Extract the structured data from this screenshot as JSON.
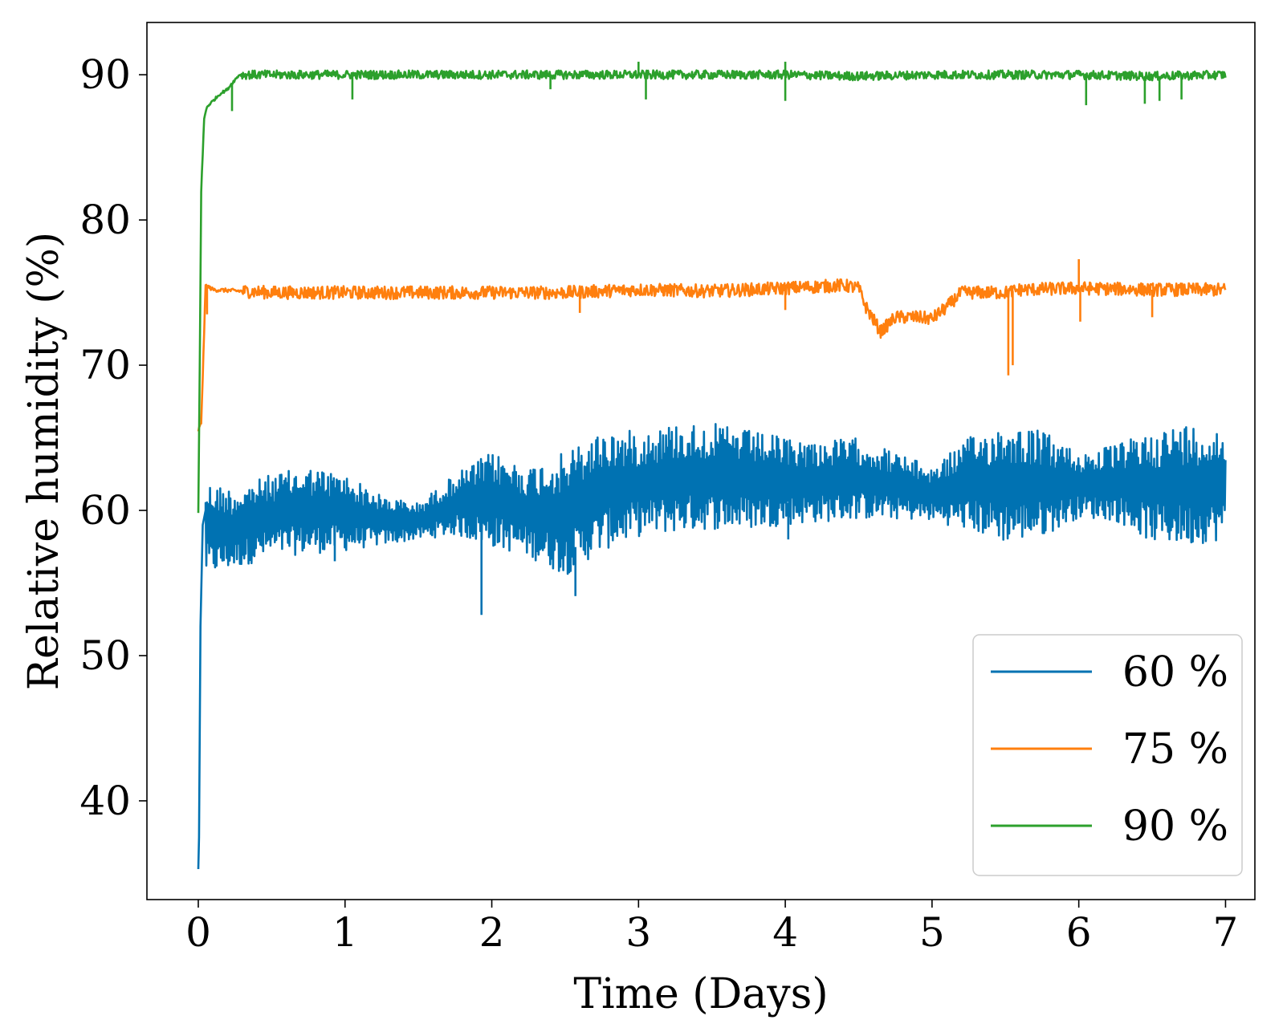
{
  "chart_data": {
    "type": "line",
    "title": "",
    "xlabel": "Time (Days)",
    "ylabel": "Relative humidity (%)",
    "xlim": [
      -0.35,
      7.2
    ],
    "ylim": [
      33.2,
      93.6
    ],
    "xticks": [
      0,
      1,
      2,
      3,
      4,
      5,
      6,
      7
    ],
    "yticks": [
      40,
      50,
      60,
      70,
      80,
      90
    ],
    "xtick_labels": [
      "0",
      "1",
      "2",
      "3",
      "4",
      "5",
      "6",
      "7"
    ],
    "ytick_labels": [
      "40",
      "50",
      "60",
      "70",
      "80",
      "90"
    ],
    "grid": false,
    "legend_position": "lower-right",
    "series": [
      {
        "name": "60 %",
        "color": "#0072b2",
        "start": [
          [
            0.0,
            35.3
          ],
          [
            0.005,
            37.5
          ],
          [
            0.015,
            52.0
          ],
          [
            0.03,
            59.0
          ],
          [
            0.05,
            60.0
          ]
        ],
        "envelope_x": [
          0.05,
          0.25,
          0.5,
          0.75,
          1.0,
          1.25,
          1.5,
          1.75,
          2.0,
          2.25,
          2.5,
          2.75,
          3.0,
          3.25,
          3.5,
          3.75,
          4.0,
          4.25,
          4.5,
          4.75,
          5.0,
          5.25,
          5.5,
          5.75,
          6.0,
          6.25,
          6.5,
          6.75,
          7.0
        ],
        "envelope_low": [
          55.5,
          56.0,
          56.8,
          57.0,
          57.2,
          57.6,
          58.0,
          58.3,
          57.5,
          56.8,
          55.5,
          57.2,
          58.2,
          58.5,
          58.7,
          58.7,
          59.0,
          59.2,
          59.4,
          59.4,
          59.3,
          58.6,
          57.8,
          58.2,
          59.5,
          59.3,
          57.8,
          57.6,
          58.0
        ],
        "envelope_high": [
          62.0,
          61.5,
          62.5,
          63.0,
          62.5,
          61.0,
          60.5,
          62.5,
          64.0,
          63.0,
          64.0,
          65.5,
          65.5,
          66.0,
          66.0,
          65.5,
          65.0,
          64.8,
          65.0,
          64.0,
          63.0,
          65.0,
          66.0,
          65.5,
          64.0,
          64.5,
          65.5,
          66.0,
          65.5
        ],
        "spikes": [
          [
            1.93,
            52.8
          ],
          [
            2.57,
            54.1
          ],
          [
            0.93,
            56.5
          ],
          [
            4.02,
            58.0
          ]
        ]
      },
      {
        "name": "75 %",
        "color": "#ff7f0e",
        "x": [
          0.0,
          0.02,
          0.05,
          0.1,
          0.5,
          1.0,
          1.5,
          2.0,
          2.5,
          3.0,
          3.5,
          4.0,
          4.4,
          4.5,
          4.55,
          4.65,
          4.75,
          4.9,
          5.0,
          5.1,
          5.2,
          5.4,
          5.5,
          5.6,
          6.0,
          6.5,
          7.0
        ],
        "y": [
          65.5,
          66.0,
          75.5,
          75.2,
          75.0,
          75.0,
          75.0,
          75.0,
          75.0,
          75.2,
          75.1,
          75.3,
          75.5,
          75.3,
          74.0,
          72.3,
          73.3,
          73.3,
          73.2,
          74.0,
          75.0,
          75.0,
          75.0,
          75.2,
          75.3,
          75.2,
          75.2
        ],
        "noise": 0.45,
        "spikes": [
          [
            0.06,
            73.5
          ],
          [
            5.52,
            69.3
          ],
          [
            5.55,
            70.0
          ],
          [
            6.0,
            77.3
          ],
          [
            6.01,
            73.0
          ],
          [
            2.6,
            73.6
          ],
          [
            4.0,
            73.8
          ],
          [
            6.5,
            73.3
          ]
        ]
      },
      {
        "name": "90 %",
        "color": "#2ca02c",
        "x": [
          0.0,
          0.01,
          0.02,
          0.04,
          0.06,
          0.1,
          0.15,
          0.2,
          0.22,
          0.28,
          0.5,
          1.0,
          2.0,
          3.0,
          4.0,
          4.5,
          5.0,
          6.0,
          6.5,
          7.0
        ],
        "y": [
          59.8,
          70.0,
          82.0,
          87.0,
          87.8,
          88.2,
          88.7,
          89.0,
          89.3,
          90.0,
          90.0,
          90.0,
          90.0,
          90.0,
          90.0,
          89.9,
          90.0,
          90.0,
          89.9,
          90.0
        ],
        "noise": 0.3,
        "spikes": [
          [
            0.23,
            87.5
          ],
          [
            1.05,
            88.3
          ],
          [
            2.4,
            89.0
          ],
          [
            3.05,
            88.3
          ],
          [
            3.0,
            90.9
          ],
          [
            4.0,
            88.2
          ],
          [
            4.0,
            90.9
          ],
          [
            6.05,
            87.9
          ],
          [
            6.45,
            88.0
          ],
          [
            6.7,
            88.3
          ],
          [
            6.55,
            88.2
          ]
        ]
      }
    ]
  }
}
